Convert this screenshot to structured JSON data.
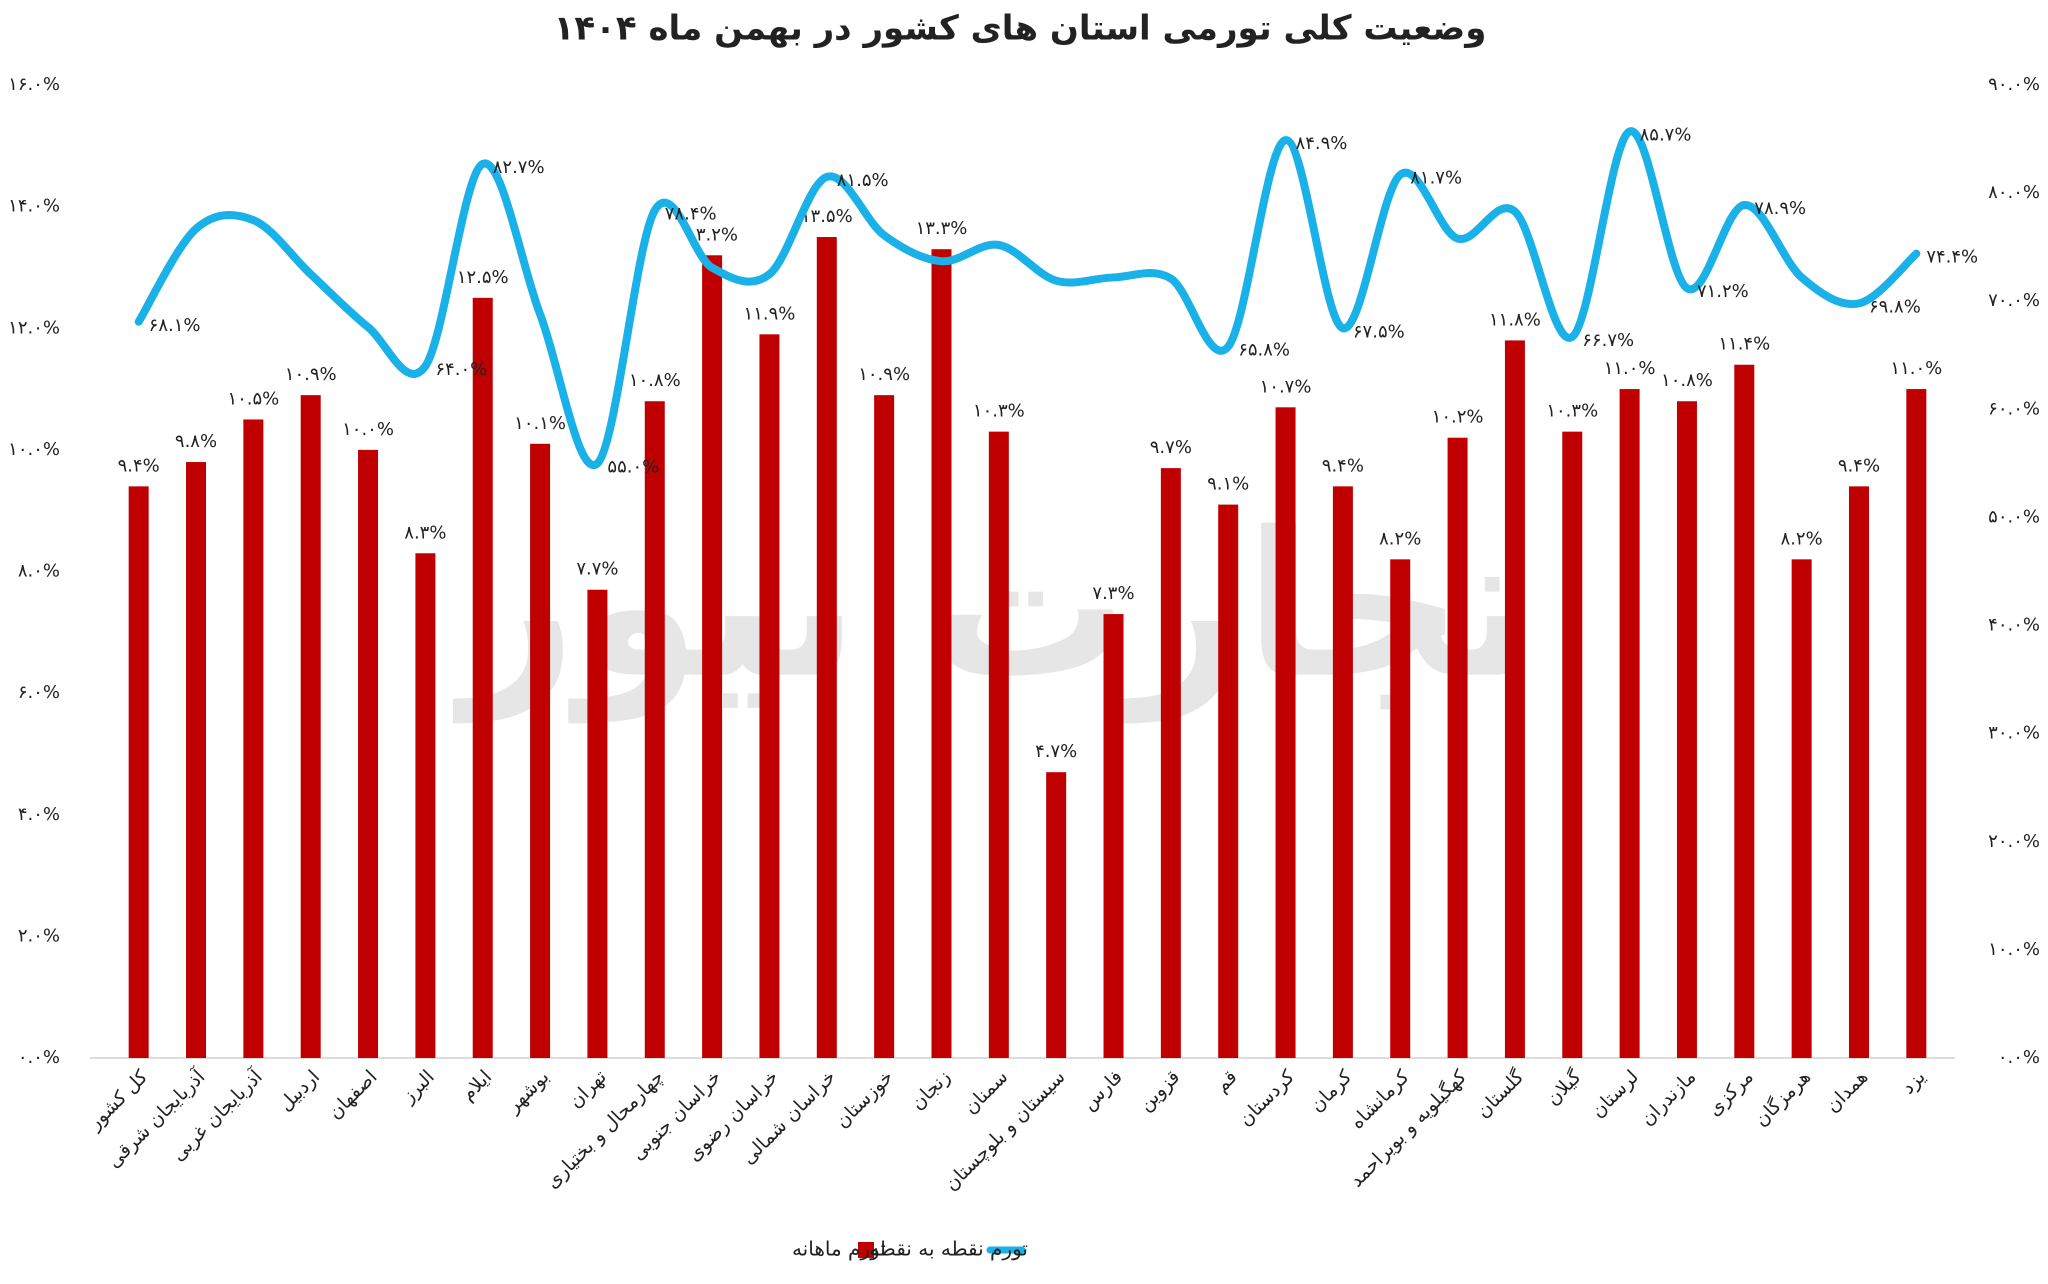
{
  "chart_data": {
    "type": "combo",
    "title": "وضعیت کلی تورمی استان های کشور  در بهمن ماه ۱۴۰۴",
    "watermark": "تجارت نیوز",
    "categories": [
      "کل کشور",
      "آذربایجان شرقی",
      "آذربایجان غربی",
      "اردبیل",
      "اصفهان",
      "البرز",
      "ایلام",
      "بوشهر",
      "تهران",
      "چهارمحال و بختیاری",
      "خراسان جنوبی",
      "خراسان رضوی",
      "خراسان شمالی",
      "خوزستان",
      "زنجان",
      "سمنان",
      "سیستان و بلوچستان",
      "فارس",
      "قزوین",
      "قم",
      "کردستان",
      "کرمان",
      "کرمانشاه",
      "کهگیلویه و بویراحمد",
      "گلستان",
      "گیلان",
      "لرستان",
      "مازندران",
      "مرکزی",
      "هرمزگان",
      "همدان",
      "یزد"
    ],
    "series": [
      {
        "name": "تورم ماهانه",
        "type": "bar",
        "color": "#c00000",
        "values": [
          9.4,
          9.8,
          10.5,
          10.9,
          10.0,
          8.3,
          12.5,
          10.1,
          7.7,
          10.8,
          13.2,
          11.9,
          13.5,
          10.9,
          13.3,
          10.3,
          4.7,
          7.3,
          9.7,
          9.1,
          10.7,
          9.4,
          8.2,
          10.2,
          11.8,
          10.3,
          11.0,
          10.8,
          11.4,
          8.2,
          9.4,
          11.0
        ],
        "value_labels": [
          "۹.۴%",
          "۹.۸%",
          "۱۰.۵%",
          "۱۰.۹%",
          "۱۰.۰%",
          "۸.۳%",
          "۱۲.۵%",
          "۱۰.۱%",
          "۷.۷%",
          "۱۰.۸%",
          "۱۳.۲%",
          "۱۱.۹%",
          "۱۳.۵%",
          "۱۰.۹%",
          "۱۳.۳%",
          "۱۰.۳%",
          "۴.۷%",
          "۷.۳%",
          "۹.۷%",
          "۹.۱%",
          "۱۰.۷%",
          "۹.۴%",
          "۸.۲%",
          "۱۰.۲%",
          "۱۱.۸%",
          "۱۰.۳%",
          "۱۱.۰%",
          "۱۰.۸%",
          "۱۱.۴%",
          "۸.۲%",
          "۹.۴%",
          "۱۱.۰%"
        ]
      },
      {
        "name": "تورم نقطه به نقطه",
        "type": "line",
        "axis": "y2",
        "color": "#1ab0e8",
        "values": [
          68.1,
          76.7,
          77.5,
          72.5,
          67.6,
          64.0,
          82.7,
          68.8,
          55.0,
          78.4,
          73.1,
          72.5,
          81.5,
          76.1,
          73.7,
          75.2,
          71.9,
          72.2,
          72.1,
          65.8,
          84.9,
          67.5,
          81.7,
          75.8,
          78.3,
          66.7,
          85.7,
          71.2,
          78.9,
          72.2,
          69.8,
          74.4
        ],
        "value_labels": [
          "۶۸.۱%",
          null,
          null,
          null,
          null,
          "۶۴.۰%",
          "۸۲.۷%",
          null,
          "۵۵.۰%",
          "۷۸.۴%",
          null,
          null,
          "۸۱.۵%",
          null,
          null,
          null,
          null,
          null,
          null,
          "۶۵.۸%",
          "۸۴.۹%",
          "۶۷.۵%",
          "۸۱.۷%",
          null,
          null,
          "۶۶.۷%",
          "۸۵.۷%",
          "۷۱.۲%",
          "۷۸.۹%",
          null,
          "۶۹.۸%",
          "۷۴.۴%"
        ]
      }
    ],
    "ylim": [
      0,
      16
    ],
    "yticks": [
      {
        "value": 0,
        "label": "۰.۰%"
      },
      {
        "value": 2,
        "label": "۲.۰%"
      },
      {
        "value": 4,
        "label": "۴.۰%"
      },
      {
        "value": 6,
        "label": "۶.۰%"
      },
      {
        "value": 8,
        "label": "۸.۰%"
      },
      {
        "value": 10,
        "label": "۱۰.۰%"
      },
      {
        "value": 12,
        "label": "۱۲.۰%"
      },
      {
        "value": 14,
        "label": "۱۴.۰%"
      },
      {
        "value": 16,
        "label": "۱۶.۰%"
      }
    ],
    "y2lim": [
      0,
      90
    ],
    "y2ticks": [
      {
        "value": 0,
        "label": "۰.۰%"
      },
      {
        "value": 10,
        "label": "۱۰.۰%"
      },
      {
        "value": 20,
        "label": "۲۰.۰%"
      },
      {
        "value": 30,
        "label": "۳۰.۰%"
      },
      {
        "value": 40,
        "label": "۴۰.۰%"
      },
      {
        "value": 50,
        "label": "۵۰.۰%"
      },
      {
        "value": 60,
        "label": "۶۰.۰%"
      },
      {
        "value": 70,
        "label": "۷۰.۰%"
      },
      {
        "value": 80,
        "label": "۸۰.۰%"
      },
      {
        "value": 90,
        "label": "۹۰.۰%"
      }
    ],
    "grid": false,
    "legend": "bottom"
  }
}
